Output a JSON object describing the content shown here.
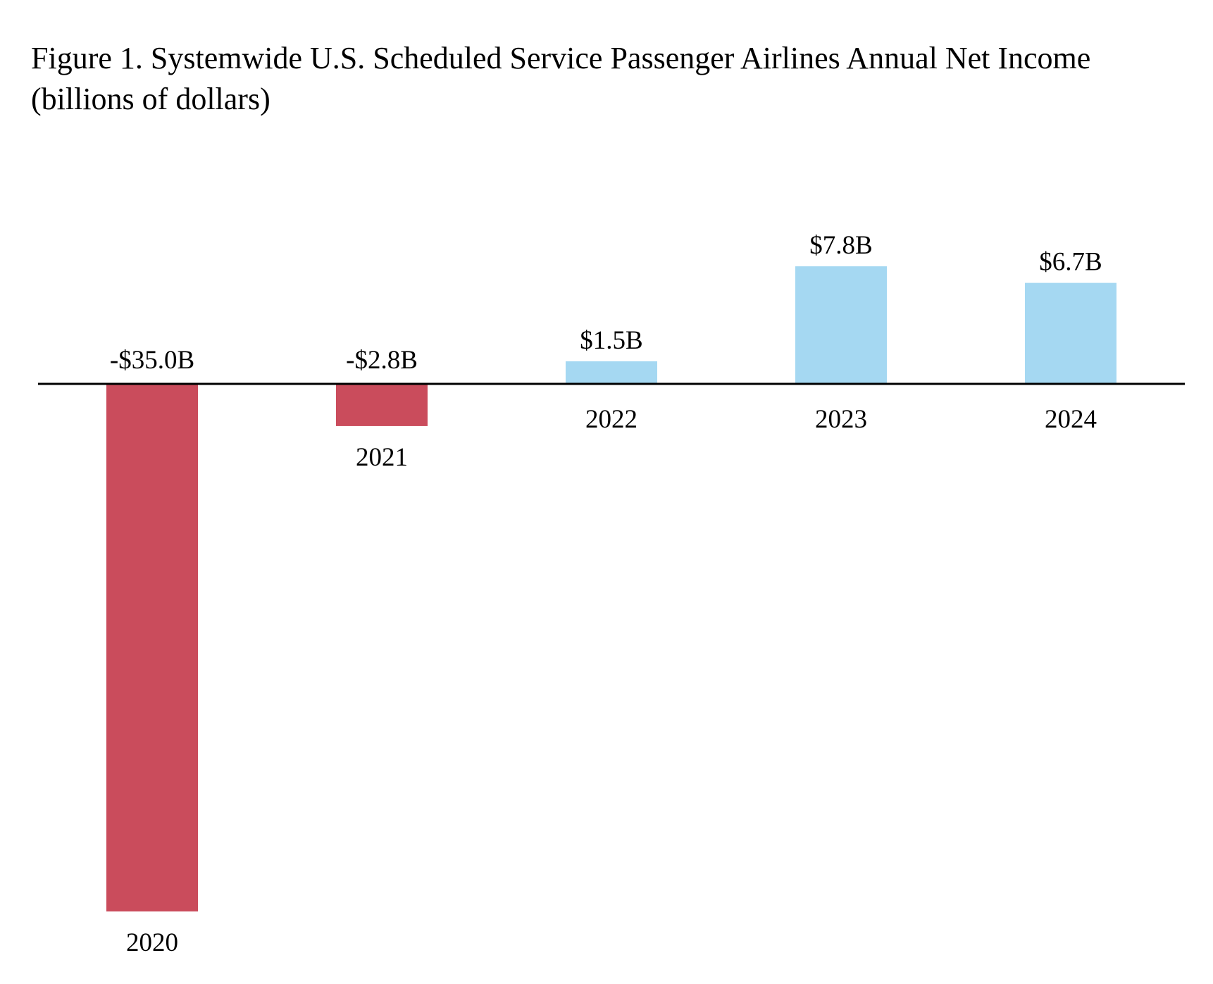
{
  "figure": {
    "title_line1": "Figure 1. Systemwide U.S. Scheduled Service Passenger Airlines Annual Net Income",
    "title_line2": "(billions of dollars)"
  },
  "colors": {
    "negative": "#CA4C5C",
    "positive": "#A5D8F2",
    "axis": "#000000"
  },
  "chart_data": {
    "type": "bar",
    "title": "Figure 1. Systemwide U.S. Scheduled Service Passenger Airlines Annual Net Income (billions of dollars)",
    "categories": [
      "2020",
      "2021",
      "2022",
      "2023",
      "2024"
    ],
    "values": [
      -35.0,
      -2.8,
      1.5,
      7.8,
      6.7
    ],
    "data_labels": [
      "-$35.0B",
      "-$2.8B",
      "$1.5B",
      "$7.8B",
      "$6.7B"
    ],
    "xlabel": "",
    "ylabel": "",
    "unit": "billions of dollars",
    "ylim": [
      -35.0,
      7.8
    ],
    "grid": false,
    "legend": "none"
  }
}
